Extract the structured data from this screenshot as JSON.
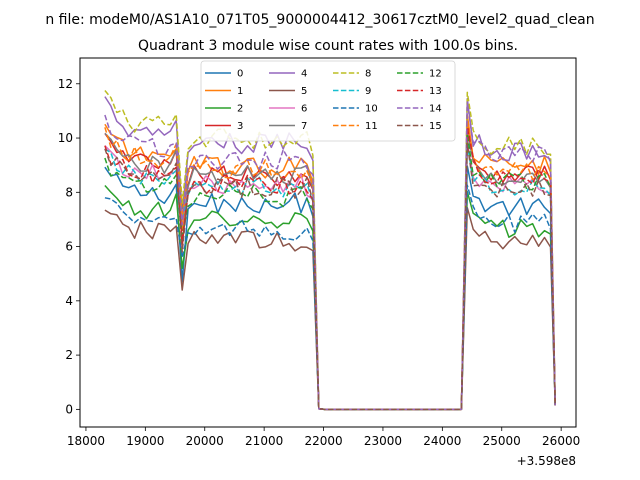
{
  "chart_data": {
    "type": "line",
    "suptitle": "n file: modeM0/AS1A10_071T05_9000004412_30617cztM0_level2_quad_clean",
    "title": "Quadrant 3 module wise count rates with 100.0s bins.",
    "x_offset_label": "+3.598e8",
    "xlim": [
      17900,
      26250
    ],
    "ylim": [
      -0.65,
      12.95
    ],
    "x_ticks": [
      18000,
      19000,
      20000,
      21000,
      22000,
      23000,
      24000,
      25000,
      26000
    ],
    "x_tick_labels": [
      "18000",
      "19000",
      "20000",
      "21000",
      "22000",
      "23000",
      "24000",
      "25000",
      "26000"
    ],
    "y_ticks": [
      0,
      2,
      4,
      6,
      8,
      10,
      12
    ],
    "y_tick_labels": [
      "0",
      "2",
      "4",
      "6",
      "8",
      "10",
      "12"
    ],
    "grid": false,
    "legend_placement": "top-center",
    "legend_columns": 4,
    "segments_x": {
      "pre": [
        18320,
        18420,
        18520,
        18620,
        18720,
        18820,
        18920,
        19020,
        19120,
        19220,
        19320,
        19420,
        19520,
        19620,
        19720,
        19820,
        19920,
        20020,
        20120,
        20220,
        20320,
        20420,
        20520,
        20620,
        20720,
        20820,
        20920,
        21020,
        21120,
        21220,
        21320,
        21420,
        21520,
        21620,
        21720,
        21820,
        21920
      ],
      "gap": [
        22020,
        22120,
        22220,
        22320,
        22420,
        22520,
        22620,
        22720,
        22820,
        22920,
        23020,
        23120,
        23220,
        23320,
        23420,
        23520,
        23620,
        23720,
        23820,
        23920,
        24020,
        24120,
        24220,
        24320
      ],
      "post": [
        24420,
        24520,
        24620,
        24720,
        24820,
        24920,
        25020,
        25120,
        25220,
        25320,
        25420,
        25520,
        25620,
        25720,
        25820,
        25900
      ]
    },
    "series": [
      {
        "name": "0",
        "color": "#1f77b4",
        "style": "solid",
        "pre_mean": 7.9,
        "dip": 4.7,
        "post_mean": 7.6
      },
      {
        "name": "1",
        "color": "#ff7f0e",
        "style": "solid",
        "pre_mean": 9.3,
        "dip": 6.6,
        "post_mean": 9.2
      },
      {
        "name": "2",
        "color": "#2ca02c",
        "style": "solid",
        "pre_mean": 7.3,
        "dip": 5.2,
        "post_mean": 6.8
      },
      {
        "name": "3",
        "color": "#d62728",
        "style": "solid",
        "pre_mean": 9.0,
        "dip": 6.0,
        "post_mean": 8.9
      },
      {
        "name": "4",
        "color": "#9467bd",
        "style": "solid",
        "pre_mean": 10.2,
        "dip": 7.2,
        "post_mean": 9.7
      },
      {
        "name": "5",
        "color": "#8c564b",
        "style": "solid",
        "pre_mean": 6.5,
        "dip": 4.4,
        "post_mean": 6.3
      },
      {
        "name": "6",
        "color": "#e377c2",
        "style": "solid",
        "pre_mean": 8.6,
        "dip": 7.3,
        "post_mean": 8.4
      },
      {
        "name": "7",
        "color": "#7f7f7f",
        "style": "solid",
        "pre_mean": 9.0,
        "dip": 7.4,
        "post_mean": 8.6
      },
      {
        "name": "8",
        "color": "#bcbd22",
        "style": "dashed",
        "pre_mean": 10.4,
        "dip": 7.6,
        "post_mean": 9.9
      },
      {
        "name": "9",
        "color": "#17becf",
        "style": "dashed",
        "pre_mean": 8.5,
        "dip": 7.0,
        "post_mean": 8.3
      },
      {
        "name": "10",
        "color": "#1f77b4",
        "style": "dashed",
        "pre_mean": 6.9,
        "dip": 5.6,
        "post_mean": 7.0
      },
      {
        "name": "11",
        "color": "#ff7f0e",
        "style": "dashed",
        "pre_mean": 9.2,
        "dip": 7.1,
        "post_mean": 9.0
      },
      {
        "name": "12",
        "color": "#2ca02c",
        "style": "dashed",
        "pre_mean": 8.2,
        "dip": 6.4,
        "post_mean": 8.6
      },
      {
        "name": "13",
        "color": "#d62728",
        "style": "dashed",
        "pre_mean": 8.6,
        "dip": 6.2,
        "post_mean": 8.8
      },
      {
        "name": "14",
        "color": "#9467bd",
        "style": "dashed",
        "pre_mean": 9.6,
        "dip": 6.8,
        "post_mean": 9.6
      },
      {
        "name": "15",
        "color": "#8c564b",
        "style": "dashed",
        "pre_mean": 8.5,
        "dip": 5.8,
        "post_mean": 8.3
      }
    ]
  }
}
